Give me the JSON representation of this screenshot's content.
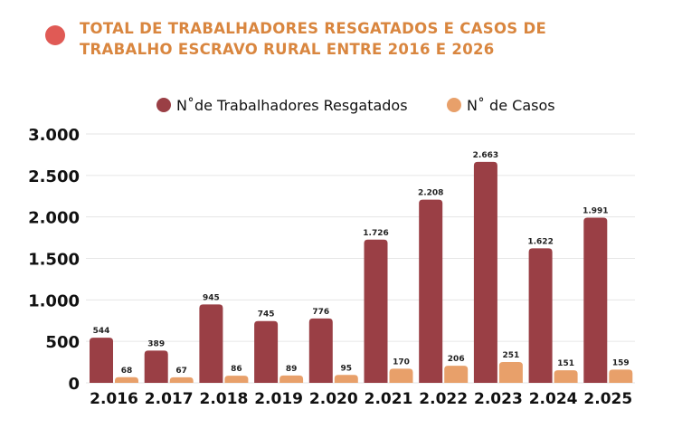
{
  "colors": {
    "title": "#d9863f",
    "title_dot": "#e05a55",
    "series1": "#9a3f45",
    "series2": "#e8a06a",
    "grid": "#e6e6e6"
  },
  "chart_data": {
    "type": "bar",
    "title": "TOTAL DE TRABALHADORES RESGATADOS E CASOS DE TRABALHO ESCRAVO RURAL ENTRE 2016 E 2026",
    "title_lines": [
      "TOTAL DE TRABALHADORES RESGATADOS E CASOS DE",
      "TRABALHO ESCRAVO RURAL ENTRE 2016 E 2026"
    ],
    "categories": [
      "2.016",
      "2.017",
      "2.018",
      "2.019",
      "2.020",
      "2.021",
      "2.022",
      "2.023",
      "2.024",
      "2.025"
    ],
    "series": [
      {
        "name": "N˚de Trabalhadores Resgatados",
        "values": [
          544,
          389,
          945,
          745,
          776,
          1726,
          2208,
          2663,
          1622,
          1991
        ],
        "labels": [
          "544",
          "389",
          "945",
          "745",
          "776",
          "1.726",
          "2.208",
          "2.663",
          "1.622",
          "1.991"
        ]
      },
      {
        "name": "N˚ de Casos",
        "values": [
          68,
          67,
          86,
          89,
          95,
          170,
          206,
          251,
          151,
          159
        ],
        "labels": [
          "68",
          "67",
          "86",
          "89",
          "95",
          "170",
          "206",
          "251",
          "151",
          "159"
        ]
      }
    ],
    "ylim": [
      0,
      3000
    ],
    "yticks": [
      0,
      500,
      1000,
      1500,
      2000,
      2500,
      3000
    ],
    "ytick_labels": [
      "0",
      "500",
      "1.000",
      "1.500",
      "2.000",
      "2.500",
      "3.000"
    ],
    "grid": true,
    "legend": "top-center",
    "xlabel": "",
    "ylabel": ""
  }
}
